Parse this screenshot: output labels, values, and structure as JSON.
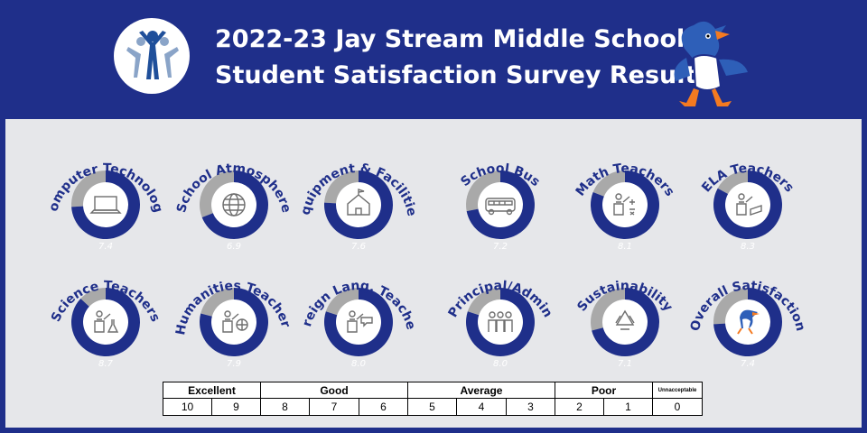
{
  "header": {
    "title_line1": "2022-23 Jay Stream Middle School",
    "title_line2": "Student Satisfaction Survey Results"
  },
  "colors": {
    "background": "#1f2f8a",
    "panel": "#e6e7ea",
    "gauge_fill": "#1f2f8a",
    "gauge_remainder": "#a9a9a9",
    "icon": "#6e6e6e"
  },
  "chart_data": {
    "type": "gauge",
    "max": 10,
    "items": [
      {
        "label": "Computer Technology",
        "value": 7.4,
        "display": "7.4",
        "icon": "laptop-icon"
      },
      {
        "label": "School Atmosphere",
        "value": 6.9,
        "display": "6.9",
        "icon": "globe-icon"
      },
      {
        "label": "Equipment & Facilities",
        "value": 7.6,
        "display": "7.6",
        "icon": "schoolhouse-icon"
      },
      {
        "label": "School Bus",
        "value": 7.2,
        "display": "7.2",
        "icon": "bus-icon"
      },
      {
        "label": "Math Teachers",
        "value": 8.1,
        "display": "8.1",
        "icon": "math-teacher-icon"
      },
      {
        "label": "ELA Teachers",
        "value": 8.3,
        "display": "8.3",
        "icon": "ela-teacher-icon"
      },
      {
        "label": "Science Teachers",
        "value": 8.7,
        "display": "8.7",
        "icon": "science-teacher-icon"
      },
      {
        "label": "Humanities Teachers",
        "value": 7.9,
        "display": "7.9",
        "icon": "humanities-teacher-icon"
      },
      {
        "label": "Foreign Lang. Teachers",
        "value": 8.0,
        "display": "8.0",
        "icon": "language-teacher-icon"
      },
      {
        "label": "Principal/Admin",
        "value": 8.0,
        "display": "8.0",
        "icon": "admin-group-icon"
      },
      {
        "label": "Sustainability",
        "value": 7.1,
        "display": "7.1",
        "icon": "recycle-icon"
      },
      {
        "label": "Overall Satisfaction",
        "value": 7.4,
        "display": "7.4",
        "icon": "mascot-icon"
      }
    ]
  },
  "scale": {
    "categories": [
      "Excellent",
      "Good",
      "Average",
      "Poor",
      "Unnacceptable"
    ],
    "values": [
      "10",
      "9",
      "8",
      "7",
      "6",
      "5",
      "4",
      "3",
      "2",
      "1",
      "0"
    ]
  }
}
